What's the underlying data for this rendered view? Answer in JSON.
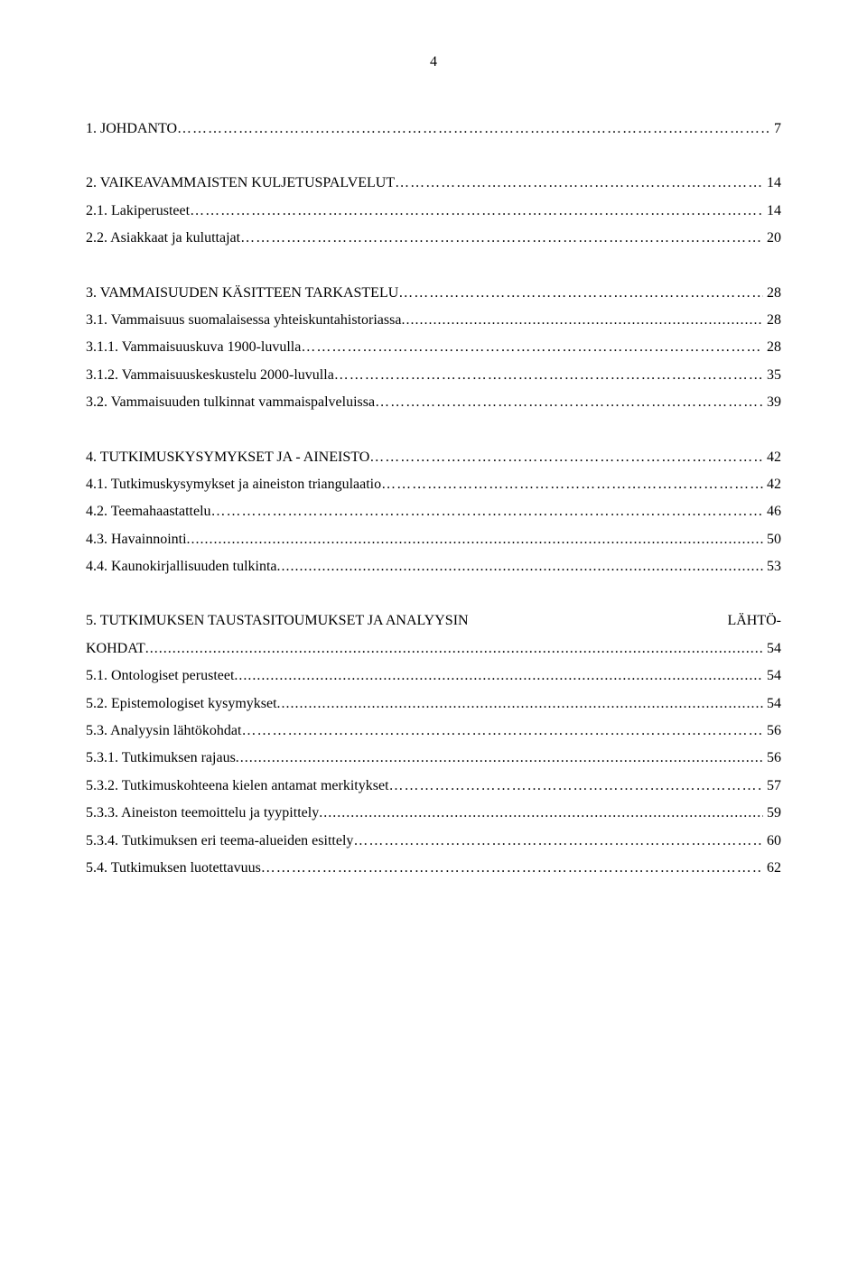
{
  "pageNumber": "4",
  "entries": [
    {
      "label": "1. JOHDANTO",
      "page": "7",
      "gapAfter": "large"
    },
    {
      "label": "2. VAIKEAVAMMAISTEN KULJETUSPALVELUT",
      "page": "14",
      "gapAfter": "small"
    },
    {
      "label": "2.1. Lakiperusteet",
      "page": "14",
      "gapAfter": "small"
    },
    {
      "label": "2.2. Asiakkaat ja kuluttajat",
      "page": "20",
      "gapAfter": "large"
    },
    {
      "label": "3. VAMMAISUUDEN KÄSITTEEN TARKASTELU",
      "page": "28",
      "gapAfter": "small"
    },
    {
      "label": "3.1. Vammaisuus suomalaisessa yhteiskuntahistoriassa",
      "page": "28",
      "dots": "sparse",
      "gapAfter": "small"
    },
    {
      "label": "3.1.1. Vammaisuuskuva 1900-luvulla",
      "page": "28",
      "gapAfter": "small"
    },
    {
      "label": "3.1.2. Vammaisuuskeskustelu 2000-luvulla",
      "page": "35",
      "gapAfter": "small"
    },
    {
      "label": "3.2. Vammaisuuden tulkinnat vammaispalveluissa",
      "page": "39",
      "gapAfter": "large"
    },
    {
      "label": "4. TUTKIMUSKYSYMYKSET JA - AINEISTO",
      "page": "42",
      "gapAfter": "small"
    },
    {
      "label": "4.1. Tutkimuskysymykset ja aineiston triangulaatio",
      "page": "42",
      "gapAfter": "small"
    },
    {
      "label": "4.2. Teemahaastattelu",
      "page": "46",
      "gapAfter": "small"
    },
    {
      "label": "4.3. Havainnointi",
      "page": "50",
      "dots": "sparse",
      "gapAfter": "small"
    },
    {
      "label": "4.4. Kaunokirjallisuuden tulkinta",
      "page": "53",
      "dots": "sparse",
      "gapAfter": "large"
    },
    {
      "type": "justified",
      "left": "5.  TUTKIMUKSEN  TAUSTASITOUMUKSET  JA  ANALYYSIN",
      "right": "LÄHTÖ-",
      "gapAfter": "small"
    },
    {
      "label": "KOHDAT",
      "page": "54",
      "dots": "sparse",
      "gapAfter": "small"
    },
    {
      "label": "5.1. Ontologiset perusteet",
      "page": "54",
      "dots": "sparse",
      "gapAfter": "small"
    },
    {
      "label": "5.2. Epistemologiset kysymykset",
      "page": "54",
      "dots": "sparse",
      "gapAfter": "small"
    },
    {
      "label": "5.3. Analyysin lähtökohdat",
      "page": "56",
      "gapAfter": "small"
    },
    {
      "label": "5.3.1. Tutkimuksen rajaus",
      "page": "56",
      "dots": "sparse",
      "gapAfter": "small"
    },
    {
      "label": "5.3.2. Tutkimuskohteena kielen antamat merkitykset",
      "page": "57",
      "gapAfter": "small"
    },
    {
      "label": "5.3.3. Aineiston teemoittelu ja tyypittely",
      "page": "59",
      "dots": "sparse",
      "gapAfter": "small"
    },
    {
      "label": "5.3.4. Tutkimuksen eri teema-alueiden esittely",
      "page": "60",
      "gapAfter": "small"
    },
    {
      "label": "5.4. Tutkimuksen luotettavuus",
      "page": "62",
      "gapAfter": "small"
    }
  ]
}
